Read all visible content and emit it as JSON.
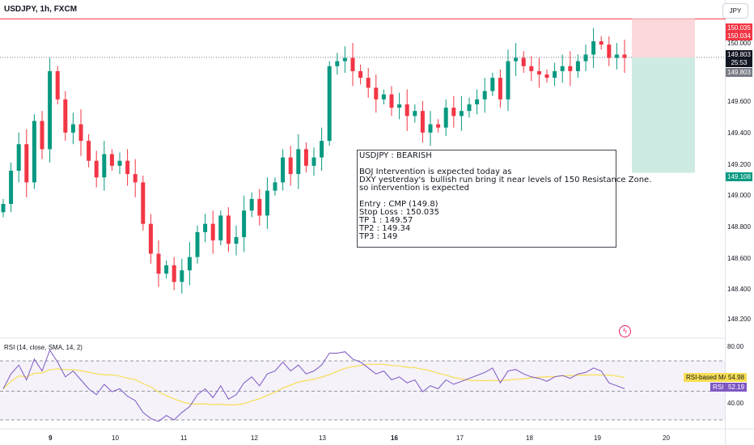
{
  "header": {
    "symbol_title": "USDJPY, 1h, FXCM",
    "currency_button": "JPY"
  },
  "colors": {
    "up": "#089981",
    "down": "#f23645",
    "resistance": "#f23645",
    "rsi": "#7e57c2",
    "rsi_ma": "#f7de52",
    "stop_zone": "#fcd7db",
    "target_zone": "#cdebe3"
  },
  "price_axis": {
    "labels": [
      "150.000",
      "149.600",
      "149.400",
      "149.200",
      "149.000",
      "148.800",
      "148.600",
      "148.400",
      "148.200"
    ]
  },
  "price_tags": {
    "stop_upper": "150.035",
    "stop_lower": "150.034",
    "current": "149.803",
    "countdown": "25:53",
    "entry": "149.803",
    "target": "149.108"
  },
  "time_axis": {
    "labels": [
      "9",
      "10",
      "11",
      "12",
      "13",
      "16",
      "17",
      "18",
      "19",
      "20"
    ]
  },
  "annotation": {
    "heading": "USDJPY : BEARISH",
    "line1": "BOJ Intervention is expected today as",
    "line2": "DXY yesterday's  bullish run bring it near levels of 150 Resistance Zone.",
    "line3": "so intervention is expected",
    "entry": "Entry : CMP (149.8)",
    "stop": "Stop Loss : 150.035",
    "tp1": "TP 1 : 149.57",
    "tp2": "TP2 : 149.34",
    "tp3": "TP3 : 149"
  },
  "rsi": {
    "title": "RSI (14, close, SMA, 14, 2)",
    "axis_top": "80.00",
    "axis_bottom": "40.00",
    "ma_label": "RSI-based MA",
    "ma_value": "54.98",
    "rsi_label": "RSI",
    "rsi_value": "52.19"
  },
  "chart_data": {
    "type": "candlestick",
    "symbol": "USDJPY",
    "timeframe": "1h",
    "ylim": [
      148.15,
      150.1
    ],
    "resistance_level": 150.035,
    "trade": {
      "direction": "short",
      "entry": 149.803,
      "stop": 150.035,
      "target": 149.108
    },
    "closes": [
      148.92,
      149.12,
      149.28,
      149.05,
      149.42,
      149.25,
      149.72,
      149.55,
      149.35,
      149.4,
      149.3,
      149.18,
      149.08,
      149.22,
      149.15,
      149.18,
      149.1,
      149.05,
      148.8,
      148.62,
      148.5,
      148.55,
      148.45,
      148.52,
      148.6,
      148.75,
      148.8,
      148.7,
      148.85,
      148.68,
      148.72,
      148.88,
      148.95,
      148.85,
      149.0,
      149.05,
      149.2,
      149.1,
      149.25,
      149.15,
      149.2,
      149.3,
      149.75,
      149.78,
      149.8,
      149.72,
      149.68,
      149.62,
      149.55,
      149.58,
      149.5,
      149.52,
      149.45,
      149.48,
      149.35,
      149.4,
      149.38,
      149.5,
      149.45,
      149.48,
      149.52,
      149.55,
      149.6,
      149.68,
      149.55,
      149.78,
      149.8,
      149.75,
      149.72,
      149.7,
      149.68,
      149.72,
      149.75,
      149.72,
      149.78,
      149.82,
      149.9,
      149.88,
      149.8,
      149.82,
      149.8
    ],
    "rsi_values": [
      52,
      62,
      68,
      58,
      72,
      64,
      78,
      70,
      60,
      64,
      58,
      52,
      48,
      55,
      50,
      52,
      47,
      44,
      36,
      32,
      30,
      34,
      31,
      36,
      40,
      48,
      52,
      46,
      54,
      45,
      48,
      56,
      60,
      54,
      62,
      64,
      70,
      64,
      68,
      62,
      64,
      68,
      76,
      76,
      77,
      72,
      70,
      66,
      62,
      64,
      58,
      60,
      56,
      58,
      50,
      54,
      52,
      58,
      55,
      57,
      59,
      61,
      63,
      66,
      56,
      64,
      65,
      62,
      60,
      59,
      57,
      60,
      61,
      59,
      62,
      63,
      66,
      64,
      56,
      54,
      52
    ],
    "rsi_ylim": [
      25,
      85
    ]
  }
}
